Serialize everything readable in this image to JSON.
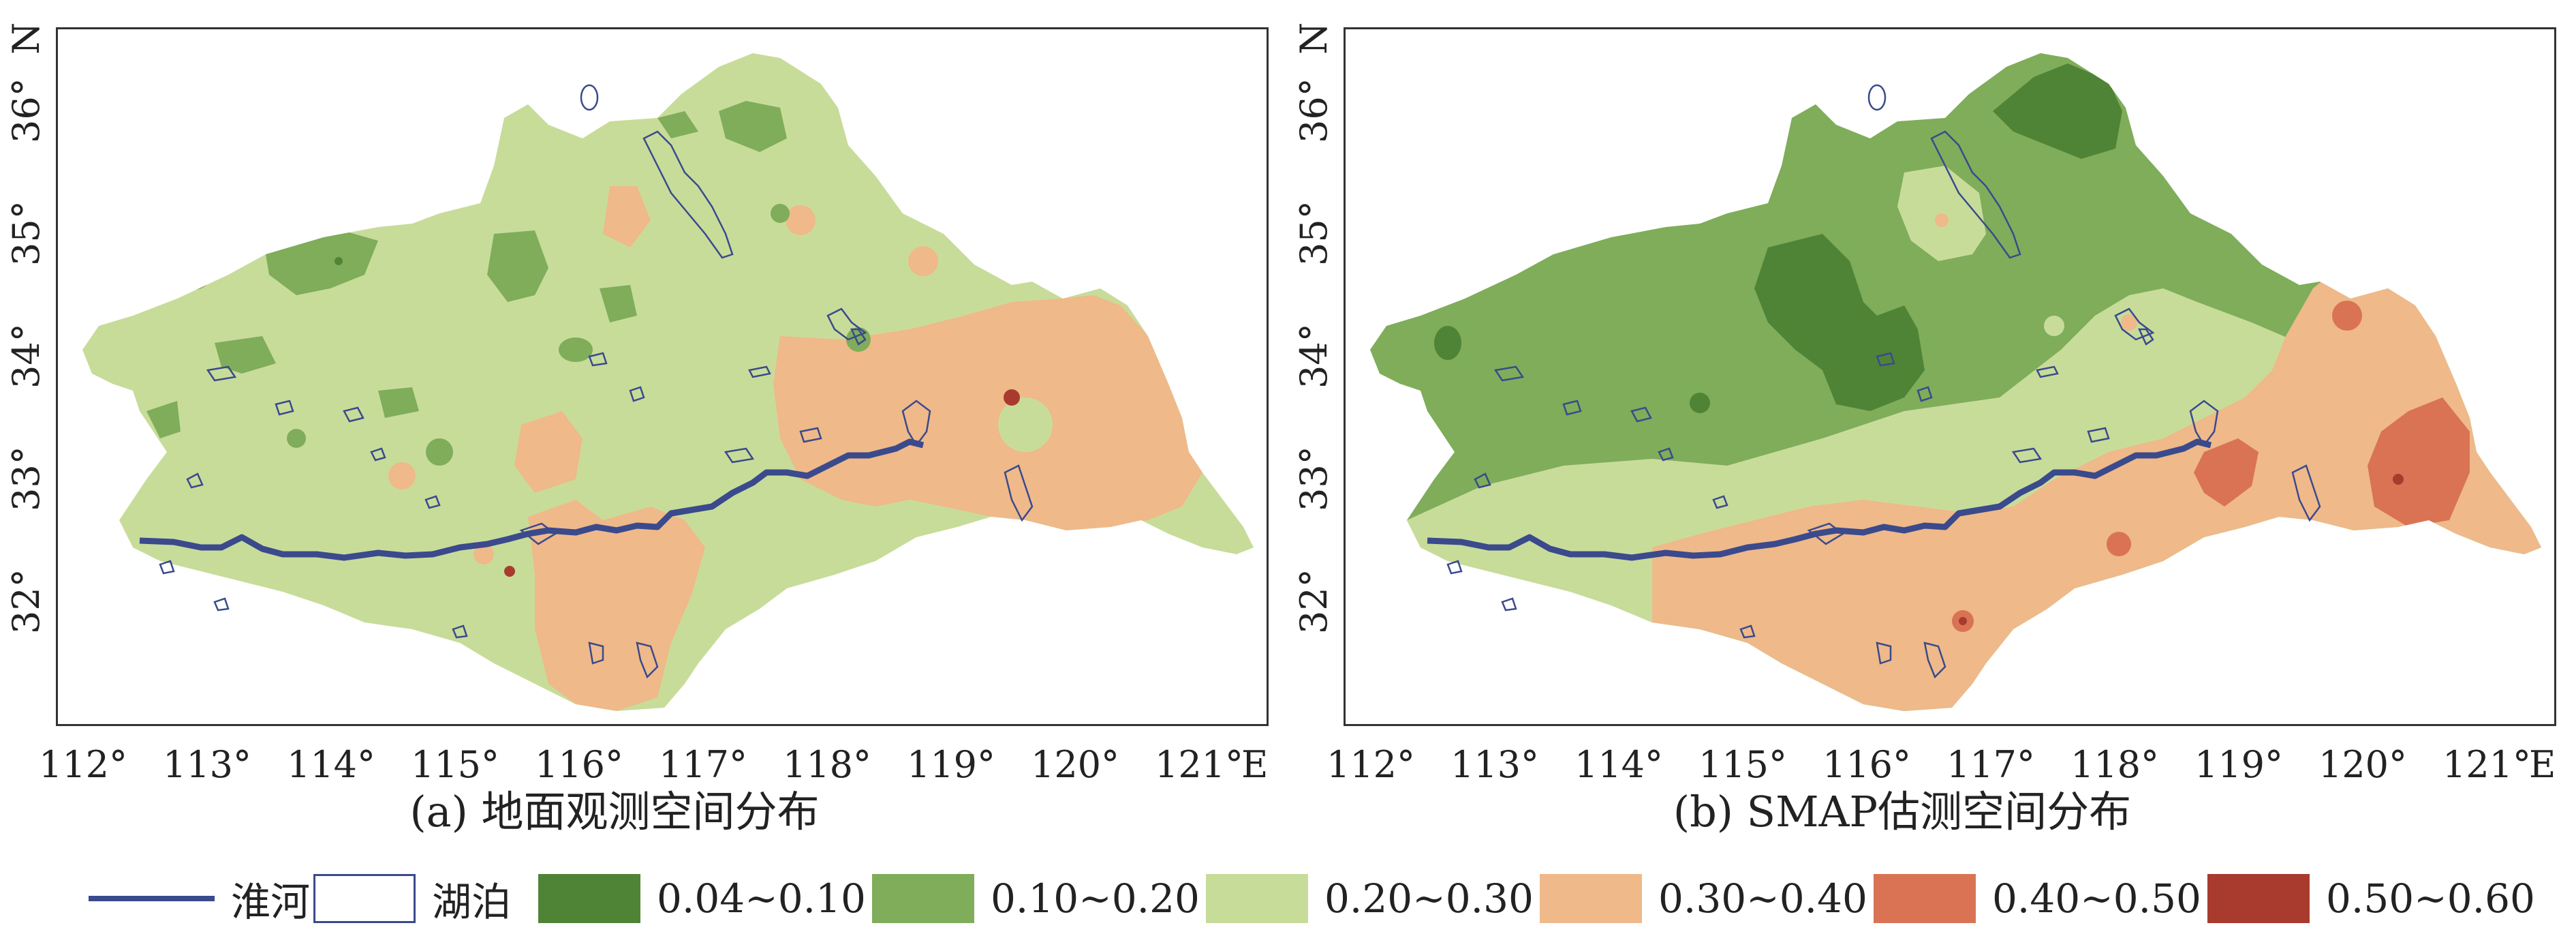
{
  "colors": {
    "c1": "#4f8436",
    "c2": "#7fad5a",
    "c3": "#c8dc9a",
    "c4": "#efb98a",
    "c5": "#d97354",
    "c6": "#a83a2e",
    "river": "#3a4a8c",
    "lake_outline": "#3a4a8c"
  },
  "axes": {
    "x_ticks": [
      "112°",
      "113°",
      "114°",
      "115°",
      "116°",
      "117°",
      "118°",
      "119°",
      "120°",
      "121°"
    ],
    "x_letter": "E",
    "y_ticks": [
      "36°",
      "35°",
      "34°",
      "33°",
      "32°"
    ],
    "y_letter": "N"
  },
  "panels": [
    {
      "id": "a",
      "caption": "(a) 地面观测空间分布"
    },
    {
      "id": "b",
      "caption": "(b) SMAP估测空间分布"
    }
  ],
  "legend": {
    "river": "淮河",
    "lake": "湖泊",
    "classes": [
      {
        "label": "0.04~0.10",
        "color": "#4f8436"
      },
      {
        "label": "0.10~0.20",
        "color": "#7fad5a"
      },
      {
        "label": "0.20~0.30",
        "color": "#c8dc9a"
      },
      {
        "label": "0.30~0.40",
        "color": "#efb98a"
      },
      {
        "label": "0.40~0.50",
        "color": "#d97354"
      },
      {
        "label": "0.50~0.60",
        "color": "#a83a2e"
      }
    ]
  }
}
